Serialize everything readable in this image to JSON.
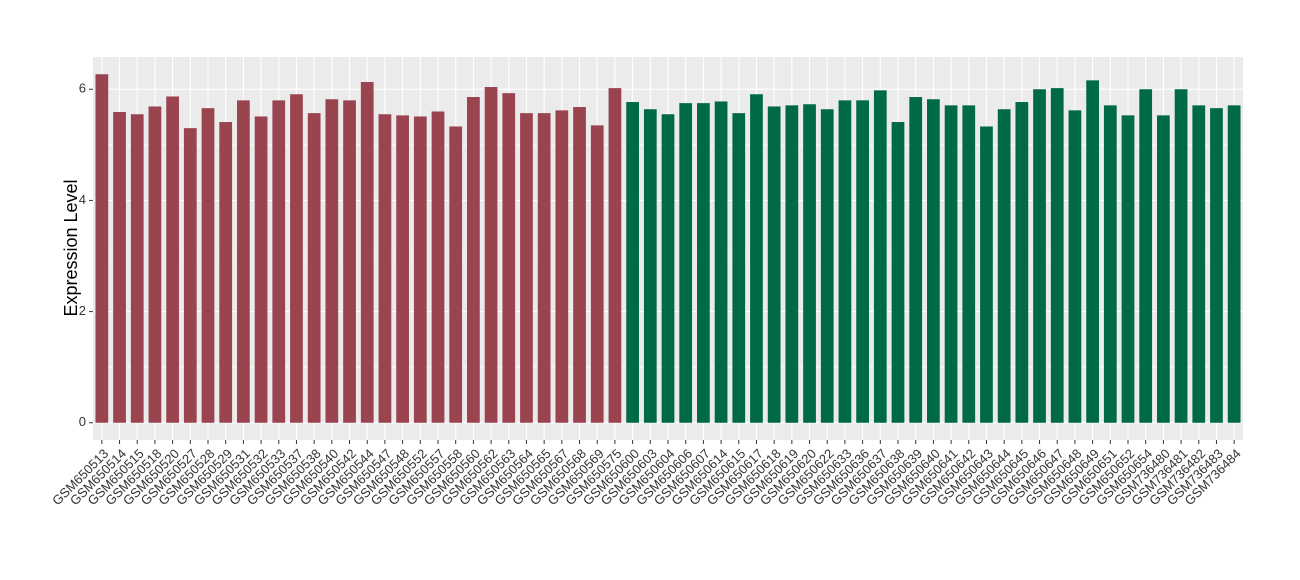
{
  "chart_data": {
    "type": "bar",
    "y_label": "Expression Level",
    "categories": [
      "GSM650513",
      "GSM650514",
      "GSM650515",
      "GSM650518",
      "GSM650520",
      "GSM650527",
      "GSM650528",
      "GSM650529",
      "GSM650531",
      "GSM650532",
      "GSM650533",
      "GSM650537",
      "GSM650538",
      "GSM650540",
      "GSM650542",
      "GSM650544",
      "GSM650547",
      "GSM650548",
      "GSM650552",
      "GSM650557",
      "GSM650558",
      "GSM650560",
      "GSM650562",
      "GSM650563",
      "GSM650564",
      "GSM650565",
      "GSM650567",
      "GSM650568",
      "GSM650569",
      "GSM650575",
      "GSM650600",
      "GSM650603",
      "GSM650604",
      "GSM650606",
      "GSM650607",
      "GSM650614",
      "GSM650615",
      "GSM650617",
      "GSM650618",
      "GSM650619",
      "GSM650620",
      "GSM650622",
      "GSM650633",
      "GSM650636",
      "GSM650637",
      "GSM650638",
      "GSM650639",
      "GSM650640",
      "GSM650641",
      "GSM650642",
      "GSM650643",
      "GSM650644",
      "GSM650645",
      "GSM650646",
      "GSM650647",
      "GSM650648",
      "GSM650649",
      "GSM650651",
      "GSM650652",
      "GSM650654",
      "GSM736480",
      "GSM736481",
      "GSM736482",
      "GSM736483",
      "GSM736484"
    ],
    "values": [
      6.27,
      5.59,
      5.55,
      5.69,
      5.87,
      5.3,
      5.66,
      5.41,
      5.8,
      5.51,
      5.8,
      5.91,
      5.57,
      5.82,
      5.8,
      6.13,
      5.55,
      5.53,
      5.51,
      5.6,
      5.33,
      5.86,
      6.04,
      5.93,
      5.57,
      5.57,
      5.62,
      5.68,
      5.35,
      6.02,
      5.77,
      5.64,
      5.55,
      5.75,
      5.75,
      5.78,
      5.57,
      5.91,
      5.69,
      5.71,
      5.73,
      5.64,
      5.8,
      5.8,
      5.98,
      5.41,
      5.86,
      5.82,
      5.71,
      5.71,
      5.33,
      5.64,
      5.77,
      6.0,
      6.02,
      5.62,
      6.16,
      5.71,
      5.53,
      6.0,
      5.53,
      6.0,
      5.71,
      5.66,
      5.71
    ],
    "colors": [
      "#9a4450",
      "#9a4450",
      "#9a4450",
      "#9a4450",
      "#9a4450",
      "#9a4450",
      "#9a4450",
      "#9a4450",
      "#9a4450",
      "#9a4450",
      "#9a4450",
      "#9a4450",
      "#9a4450",
      "#9a4450",
      "#9a4450",
      "#9a4450",
      "#9a4450",
      "#9a4450",
      "#9a4450",
      "#9a4450",
      "#9a4450",
      "#9a4450",
      "#9a4450",
      "#9a4450",
      "#9a4450",
      "#9a4450",
      "#9a4450",
      "#9a4450",
      "#9a4450",
      "#9a4450",
      "#006a44",
      "#006a44",
      "#006a44",
      "#006a44",
      "#006a44",
      "#006a44",
      "#006a44",
      "#006a44",
      "#006a44",
      "#006a44",
      "#006a44",
      "#006a44",
      "#006a44",
      "#006a44",
      "#006a44",
      "#006a44",
      "#006a44",
      "#006a44",
      "#006a44",
      "#006a44",
      "#006a44",
      "#006a44",
      "#006a44",
      "#006a44",
      "#006a44",
      "#006a44",
      "#006a44",
      "#006a44",
      "#006a44",
      "#006a44",
      "#006a44",
      "#006a44",
      "#006a44",
      "#006a44",
      "#006a44"
    ],
    "ylim": [
      -0.31,
      6.58
    ],
    "yticks": [
      0,
      2,
      4,
      6
    ],
    "grid": true
  }
}
